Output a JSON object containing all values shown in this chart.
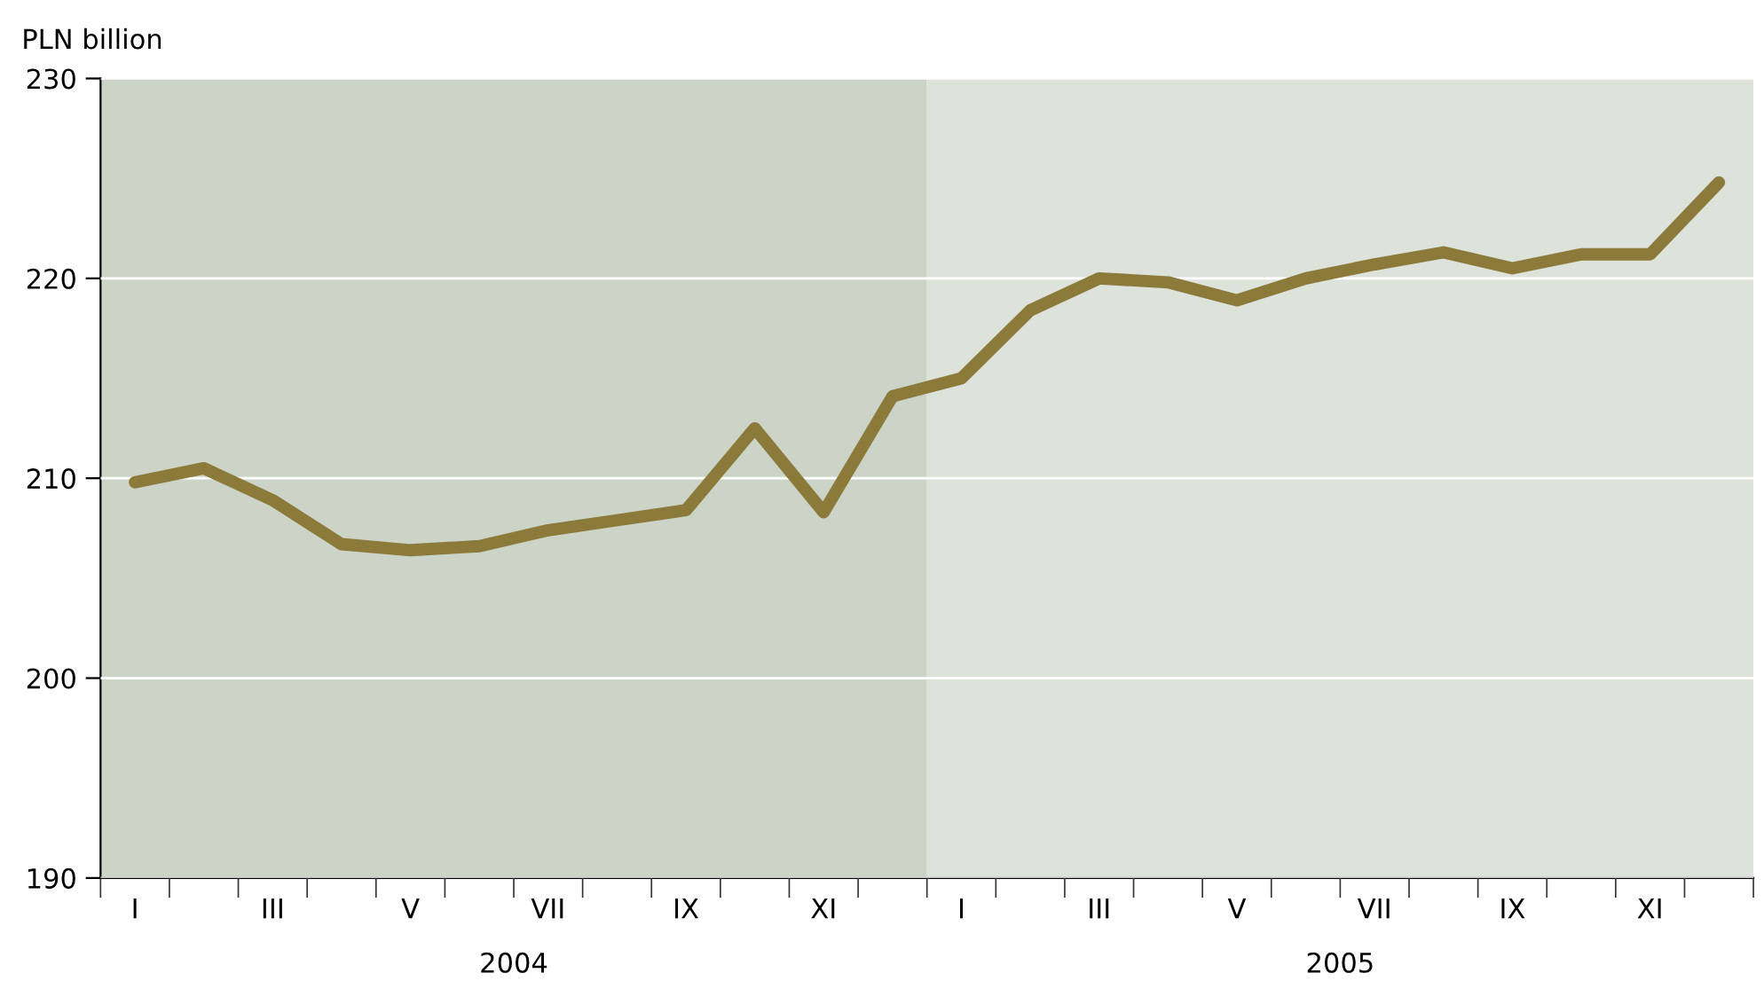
{
  "chart_data": {
    "type": "line",
    "ylabel": "PLN billion",
    "categories": [
      "I",
      null,
      "III",
      null,
      "V",
      null,
      "VII",
      null,
      "IX",
      null,
      "XI",
      null,
      "I",
      null,
      "III",
      null,
      "V",
      null,
      "VII",
      null,
      "IX",
      null,
      "XI",
      null
    ],
    "series": [
      {
        "color": "#8b7a3a",
        "values": [
          209.8,
          210.5,
          208.9,
          206.7,
          206.4,
          206.6,
          207.4,
          207.9,
          208.4,
          212.5,
          208.3,
          214.1,
          215.0,
          218.4,
          220.0,
          219.8,
          218.9,
          220.0,
          220.7,
          221.3,
          220.5,
          221.2,
          221.2,
          224.8
        ]
      }
    ],
    "ylim": [
      190,
      230
    ],
    "yticks": [
      190,
      200,
      210,
      220,
      230
    ],
    "grid": "y",
    "marker": "none",
    "line_style": "solid",
    "annotations": [
      "2004",
      "2005"
    ]
  }
}
